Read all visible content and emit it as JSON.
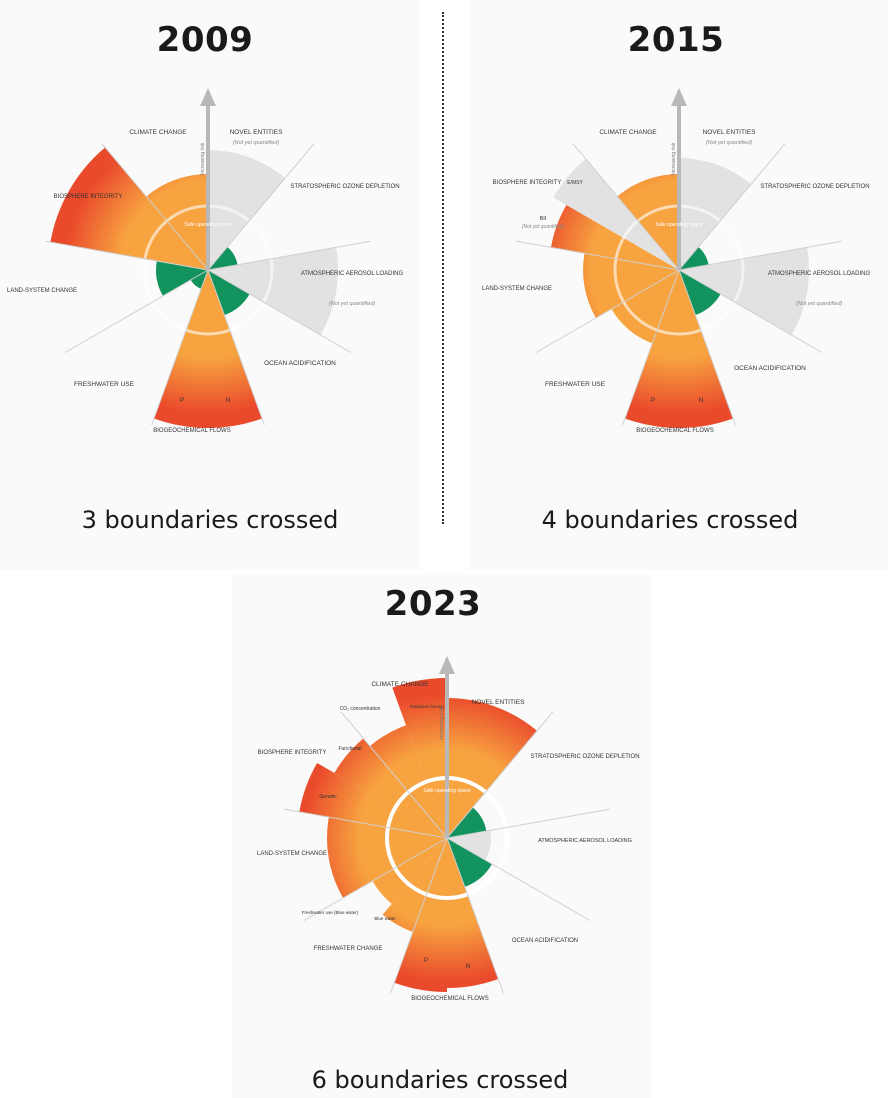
{
  "colors": {
    "safe_green": "#17a36a",
    "zone_orange": "#f7a340",
    "zone_red": "#ea4a2c",
    "not_quantified_grey": "#d9d9d9",
    "axis_grey": "#b8b8b8"
  },
  "panels": [
    {
      "year": "2009",
      "caption": "3 boundaries crossed",
      "safe_label": "Safe operating space",
      "axis_label": "Increasing risk",
      "labels": {
        "climate": "CLIMATE CHANGE",
        "novel": "NOVEL ENTITIES",
        "novel_sub": "(Not yet quantified)",
        "ozone": "STRATOSPHERIC OZONE DEPLETION",
        "aerosol": "ATMOSPHERIC AEROSOL LOADING",
        "aerosol_sub": "(Not yet quantified)",
        "ocean": "OCEAN ACIDIFICATION",
        "biogeo": "BIOGEOCHEMICAL FLOWS",
        "biogeo_p": "P",
        "biogeo_n": "N",
        "freshwater": "FRESHWATER USE",
        "land": "LAND-SYSTEM CHANGE",
        "biosphere": "BIOSPHERE INTEGRITY"
      }
    },
    {
      "year": "2015",
      "caption": "4 boundaries crossed",
      "safe_label": "Safe operating space",
      "axis_label": "Increasing risk",
      "labels": {
        "climate": "CLIMATE CHANGE",
        "novel": "NOVEL ENTITIES",
        "novel_sub": "(Not yet quantified)",
        "ozone": "STRATOSPHERIC OZONE DEPLETION",
        "aerosol": "ATMOSPHERIC AEROSOL LOADING",
        "aerosol_sub": "(Not yet quantified)",
        "ocean": "OCEAN ACIDIFICATION",
        "biogeo": "BIOGEOCHEMICAL FLOWS",
        "biogeo_p": "P",
        "biogeo_n": "N",
        "freshwater": "FRESHWATER USE",
        "land": "LAND-SYSTEM CHANGE",
        "biosphere": "BIOSPHERE INTEGRITY",
        "biosphere_g": "E/MSY",
        "biosphere_bii": "BII",
        "biosphere_bii_sub": "(Not yet quantified)"
      }
    },
    {
      "year": "2023",
      "caption": "6 boundaries crossed",
      "safe_label": "Safe operating space",
      "axis_label": "Increasing risk",
      "labels": {
        "climate": "CLIMATE CHANGE",
        "climate_co2": "CO₂ concentration",
        "climate_rf": "Radiative forcing",
        "novel": "NOVEL ENTITIES",
        "ozone": "STRATOSPHERIC OZONE DEPLETION",
        "aerosol": "ATMOSPHERIC AEROSOL LOADING",
        "ocean": "OCEAN ACIDIFICATION",
        "biogeo": "BIOGEOCHEMICAL FLOWS",
        "biogeo_p": "P",
        "biogeo_n": "N",
        "freshwater": "FRESHWATER CHANGE",
        "fresh_blue": "Blue water",
        "fresh_green": "Freshwater use (Blue water)",
        "land": "LAND-SYSTEM CHANGE",
        "biosphere": "BIOSPHERE INTEGRITY",
        "bio_genetic": "Genetic",
        "bio_functional": "Functional"
      }
    }
  ]
}
